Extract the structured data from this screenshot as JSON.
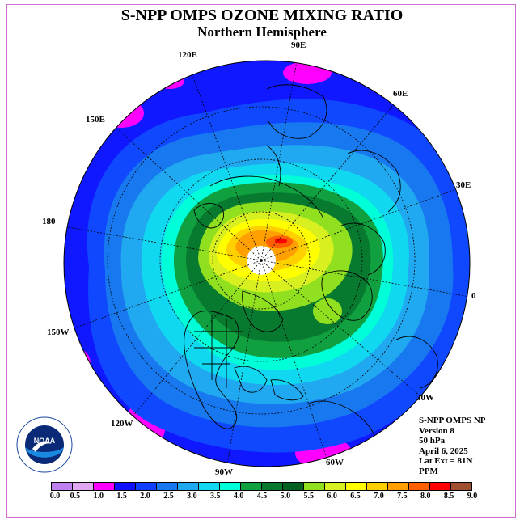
{
  "title": "S-NPP OMPS OZONE MIXING RATIO",
  "subtitle": "Northern Hemisphere",
  "longitude_labels": [
    "90E",
    "60E",
    "30E",
    "0",
    "30W",
    "60W",
    "90W",
    "120W",
    "150W",
    "180",
    "150E",
    "120E"
  ],
  "info": {
    "instrument": "S-NPP OMPS NP",
    "version": "Version 8",
    "level": "50 hPa",
    "date": "April 6, 2025",
    "lat_ext": "Lat Ext = 81N",
    "units": "PPM"
  },
  "logo_text": "NOAA",
  "colorbar": {
    "ticks": [
      "0.0",
      "0.5",
      "1.0",
      "1.5",
      "2.0",
      "2.5",
      "3.0",
      "3.5",
      "4.0",
      "4.5",
      "5.0",
      "5.5",
      "6.0",
      "6.5",
      "7.0",
      "7.5",
      "8.0",
      "8.5",
      "9.0"
    ],
    "colors": [
      "#c080f0",
      "#e0a8f0",
      "#ff00ff",
      "#1010ff",
      "#1040ff",
      "#1878f0",
      "#20a8f0",
      "#10d8f0",
      "#00ffd8",
      "#10a040",
      "#087a30",
      "#006020",
      "#90e020",
      "#d8f020",
      "#ffff00",
      "#ffd000",
      "#ffa000",
      "#ff6000",
      "#ff0000",
      "#a05030"
    ]
  }
}
